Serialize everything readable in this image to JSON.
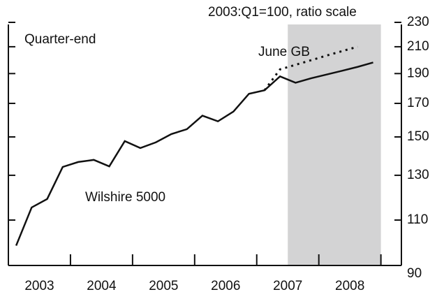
{
  "chart_data": {
    "type": "line",
    "title": "2003:Q1=100, ratio scale",
    "annotations": [
      "Quarter-end"
    ],
    "x": [
      2003.125,
      2003.375,
      2003.625,
      2003.875,
      2004.125,
      2004.375,
      2004.625,
      2004.875,
      2005.125,
      2005.375,
      2005.625,
      2005.875,
      2006.125,
      2006.375,
      2006.625,
      2006.875,
      2007.125,
      2007.375,
      2007.625,
      2007.875,
      2008.125,
      2008.375,
      2008.625,
      2008.875
    ],
    "series": [
      {
        "name": "Wilshire 5000",
        "color": "#111111",
        "style": "solid",
        "values": [
          100,
          115.3,
          119,
          134.1,
          136.6,
          137.7,
          134.4,
          147.7,
          143.9,
          147,
          151.6,
          154.4,
          162.4,
          159,
          164.9,
          176.2,
          178.5,
          188,
          183.6,
          186.7,
          189.3,
          192,
          194.8,
          198
        ]
      },
      {
        "name": "June GB",
        "color": "#111111",
        "style": "dotted",
        "values": [
          null,
          null,
          null,
          null,
          null,
          null,
          null,
          null,
          null,
          null,
          null,
          null,
          null,
          null,
          null,
          null,
          178.5,
          193,
          196.3,
          199.7,
          203.2,
          206.6,
          210,
          null
        ]
      }
    ],
    "xlim": [
      2003,
      2009.33
    ],
    "xticks": [
      {
        "value": 2003.5,
        "label": "2003"
      },
      {
        "value": 2004.5,
        "label": "2004"
      },
      {
        "value": 2005.5,
        "label": "2005"
      },
      {
        "value": 2006.5,
        "label": "2006"
      },
      {
        "value": 2007.5,
        "label": "2007"
      },
      {
        "value": 2008.5,
        "label": "2008"
      }
    ],
    "xtick_marks": [
      2004,
      2005,
      2006,
      2007,
      2008,
      2009
    ],
    "ylim": [
      90,
      230
    ],
    "log_scale": true,
    "yticks": [
      90,
      110,
      130,
      150,
      170,
      190,
      210,
      230
    ],
    "shade": [
      2007.5,
      2009.0
    ],
    "shade_color": "#d3d3d4"
  }
}
